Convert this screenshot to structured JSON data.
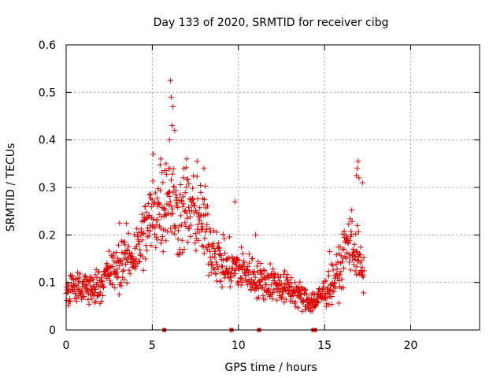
{
  "chart_data": {
    "type": "scatter",
    "title": "Day 133 of 2020, SRMTID for receiver cibg",
    "xlabel": "GPS time / hours",
    "ylabel": "SRMTID / TECUs",
    "xlim": [
      0,
      24
    ],
    "ylim": [
      0,
      0.6
    ],
    "xticks": [
      0,
      5,
      10,
      15,
      20
    ],
    "xtick_labels": [
      "0",
      "5",
      "10",
      "15",
      "20"
    ],
    "yticks": [
      0,
      0.1,
      0.2,
      0.3,
      0.4,
      0.5,
      0.6
    ],
    "ytick_labels": [
      "0",
      "0.1",
      "0.2",
      "0.3",
      "0.4",
      "0.5",
      "0.6"
    ],
    "grid": true,
    "marker": "plus",
    "color": "#e00000",
    "series": [
      {
        "name": "SRMTID",
        "trend": [
          [
            0.0,
            0.07
          ],
          [
            0.5,
            0.085
          ],
          [
            1.0,
            0.09
          ],
          [
            1.5,
            0.085
          ],
          [
            2.0,
            0.1
          ],
          [
            2.5,
            0.12
          ],
          [
            3.0,
            0.13
          ],
          [
            3.5,
            0.15
          ],
          [
            4.0,
            0.16
          ],
          [
            4.5,
            0.2
          ],
          [
            5.0,
            0.24
          ],
          [
            5.5,
            0.27
          ],
          [
            6.0,
            0.28
          ],
          [
            6.5,
            0.24
          ],
          [
            7.0,
            0.26
          ],
          [
            7.5,
            0.24
          ],
          [
            8.0,
            0.22
          ],
          [
            8.5,
            0.17
          ],
          [
            9.0,
            0.14
          ],
          [
            9.5,
            0.13
          ],
          [
            10.0,
            0.13
          ],
          [
            10.5,
            0.12
          ],
          [
            11.0,
            0.11
          ],
          [
            11.5,
            0.1
          ],
          [
            12.0,
            0.1
          ],
          [
            12.5,
            0.09
          ],
          [
            13.0,
            0.085
          ],
          [
            13.5,
            0.075
          ],
          [
            14.0,
            0.06
          ],
          [
            14.5,
            0.06
          ],
          [
            15.0,
            0.08
          ],
          [
            15.5,
            0.1
          ],
          [
            16.0,
            0.14
          ],
          [
            16.5,
            0.2
          ],
          [
            17.0,
            0.15
          ],
          [
            17.3,
            0.1
          ]
        ],
        "peaks": [
          [
            6.05,
            0.525
          ],
          [
            6.1,
            0.49
          ],
          [
            6.2,
            0.47
          ],
          [
            6.15,
            0.43
          ],
          [
            6.3,
            0.42
          ],
          [
            6.0,
            0.4
          ],
          [
            5.05,
            0.37
          ],
          [
            5.5,
            0.36
          ],
          [
            5.8,
            0.35
          ],
          [
            7.0,
            0.36
          ],
          [
            7.6,
            0.355
          ],
          [
            8.0,
            0.34
          ],
          [
            16.95,
            0.355
          ],
          [
            16.9,
            0.34
          ],
          [
            16.85,
            0.325
          ],
          [
            17.0,
            0.32
          ],
          [
            17.2,
            0.31
          ],
          [
            9.8,
            0.27
          ],
          [
            11.0,
            0.2
          ],
          [
            15.3,
            0.165
          ],
          [
            3.1,
            0.225
          ]
        ]
      }
    ],
    "data_gaps_at_zero": [
      5.7,
      9.6,
      11.2,
      14.35,
      14.45
    ]
  }
}
